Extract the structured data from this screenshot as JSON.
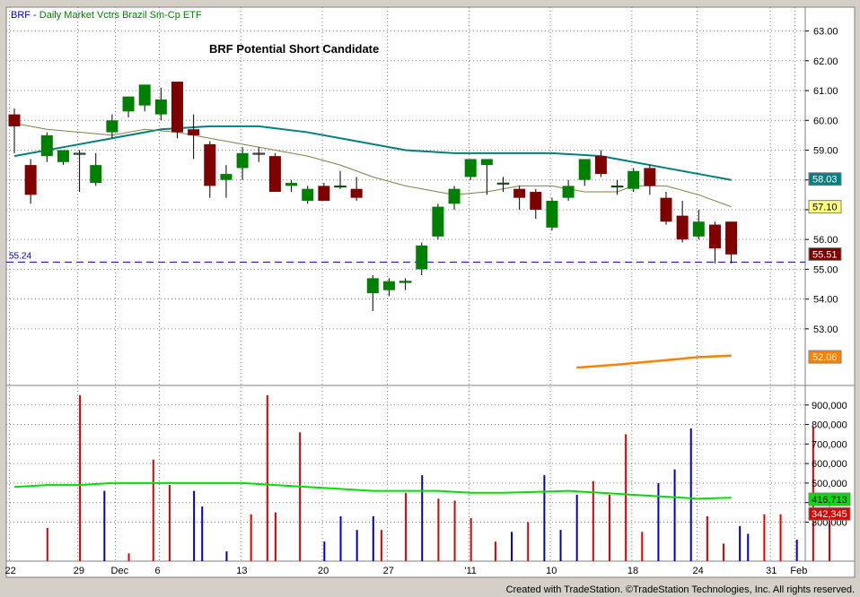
{
  "header": {
    "symbol": "BRF",
    "interval": "Daily",
    "description": "Market Vctrs Brazil Sm-Cp ETF",
    "annotation": "BRF Potential Short Candidate"
  },
  "footer": {
    "text": "Created with TradeStation. ©TradeStation Technologies, Inc. All rights reserved."
  },
  "colors": {
    "up": "#008000",
    "down": "#800000",
    "vol_up": "#0000c0",
    "vol_down": "#e00000",
    "ma_fast": "#808040",
    "ma_slow": "#008080",
    "vol_ma": "#00e000",
    "orange_line": "#ff8000",
    "support": "#0000c0",
    "grid": "#808080"
  },
  "chart_data": {
    "type": "candlestick",
    "price_axis": {
      "ticks": [
        "63.00",
        "62.00",
        "61.00",
        "60.00",
        "59.00",
        "58.00",
        "57.00",
        "56.00",
        "55.00",
        "54.00",
        "53.00"
      ],
      "range": [
        51.1,
        63.8
      ]
    },
    "volume_axis": {
      "ticks": [
        "900,000",
        "800,000",
        "700,000",
        "600,000",
        "500,000",
        "400,000",
        "300,000"
      ],
      "range": [
        100000,
        1000000
      ]
    },
    "x_labels": [
      {
        "label": "22",
        "bar": -0.3
      },
      {
        "label": "29",
        "bar": 3.9
      },
      {
        "label": "Dec",
        "bar": 6.2
      },
      {
        "label": "6",
        "bar": 8.9
      },
      {
        "label": "13",
        "bar": 13.9
      },
      {
        "label": "20",
        "bar": 18.9
      },
      {
        "label": "27",
        "bar": 22.9
      },
      {
        "label": "'11",
        "bar": 27.9
      },
      {
        "label": "10",
        "bar": 32.9
      },
      {
        "label": "18",
        "bar": 37.9
      },
      {
        "label": "24",
        "bar": 41.9
      },
      {
        "label": "31",
        "bar": 46.4
      },
      {
        "label": "Feb",
        "bar": 47.9
      }
    ],
    "candles": [
      {
        "o": 60.2,
        "h": 60.4,
        "l": 58.9,
        "c": 59.8
      },
      {
        "o": 58.5,
        "h": 58.7,
        "l": 57.2,
        "c": 57.5
      },
      {
        "o": 58.8,
        "h": 59.6,
        "l": 58.6,
        "c": 59.5
      },
      {
        "o": 58.6,
        "h": 59.0,
        "l": 58.5,
        "c": 59.0
      },
      {
        "o": 58.9,
        "h": 59.0,
        "l": 57.6,
        "c": 58.9
      },
      {
        "o": 57.9,
        "h": 58.9,
        "l": 57.8,
        "c": 58.5
      },
      {
        "o": 59.6,
        "h": 60.2,
        "l": 59.4,
        "c": 60.0
      },
      {
        "o": 60.3,
        "h": 60.8,
        "l": 60.1,
        "c": 60.8
      },
      {
        "o": 60.5,
        "h": 61.2,
        "l": 60.3,
        "c": 61.2
      },
      {
        "o": 60.2,
        "h": 61.1,
        "l": 60.0,
        "c": 60.7
      },
      {
        "o": 61.3,
        "h": 61.3,
        "l": 59.4,
        "c": 59.6
      },
      {
        "o": 59.7,
        "h": 60.2,
        "l": 58.7,
        "c": 59.5
      },
      {
        "o": 59.2,
        "h": 59.3,
        "l": 57.4,
        "c": 57.8
      },
      {
        "o": 58.0,
        "h": 58.5,
        "l": 57.4,
        "c": 58.2
      },
      {
        "o": 58.4,
        "h": 59.1,
        "l": 58.0,
        "c": 58.9
      },
      {
        "o": 58.9,
        "h": 59.1,
        "l": 58.6,
        "c": 58.9
      },
      {
        "o": 58.8,
        "h": 58.9,
        "l": 57.6,
        "c": 57.6
      },
      {
        "o": 57.8,
        "h": 58.0,
        "l": 57.6,
        "c": 57.9
      },
      {
        "o": 57.3,
        "h": 57.8,
        "l": 57.2,
        "c": 57.7
      },
      {
        "o": 57.8,
        "h": 57.9,
        "l": 57.3,
        "c": 57.3
      },
      {
        "o": 57.8,
        "h": 58.3,
        "l": 57.7,
        "c": 57.8
      },
      {
        "o": 57.7,
        "h": 58.1,
        "l": 57.3,
        "c": 57.4
      },
      {
        "o": 54.2,
        "h": 54.8,
        "l": 53.6,
        "c": 54.7
      },
      {
        "o": 54.3,
        "h": 54.7,
        "l": 54.1,
        "c": 54.6
      },
      {
        "o": 54.6,
        "h": 54.7,
        "l": 54.3,
        "c": 54.6
      },
      {
        "o": 55.0,
        "h": 55.9,
        "l": 54.8,
        "c": 55.8
      },
      {
        "o": 56.1,
        "h": 57.2,
        "l": 56.0,
        "c": 57.1
      },
      {
        "o": 57.2,
        "h": 57.8,
        "l": 57.0,
        "c": 57.7
      },
      {
        "o": 58.1,
        "h": 58.7,
        "l": 58.0,
        "c": 58.7
      },
      {
        "o": 58.5,
        "h": 58.7,
        "l": 57.5,
        "c": 58.7
      },
      {
        "o": 57.9,
        "h": 58.1,
        "l": 57.6,
        "c": 57.9
      },
      {
        "o": 57.7,
        "h": 57.8,
        "l": 57.0,
        "c": 57.4
      },
      {
        "o": 57.6,
        "h": 57.7,
        "l": 56.7,
        "c": 57.0
      },
      {
        "o": 56.4,
        "h": 57.4,
        "l": 56.3,
        "c": 57.3
      },
      {
        "o": 57.4,
        "h": 58.0,
        "l": 57.3,
        "c": 57.8
      },
      {
        "o": 58.0,
        "h": 58.7,
        "l": 57.8,
        "c": 58.7
      },
      {
        "o": 58.8,
        "h": 59.0,
        "l": 58.1,
        "c": 58.2
      },
      {
        "o": 57.8,
        "h": 58.0,
        "l": 57.5,
        "c": 57.8
      },
      {
        "o": 57.7,
        "h": 58.4,
        "l": 57.6,
        "c": 58.3
      },
      {
        "o": 58.4,
        "h": 58.5,
        "l": 57.5,
        "c": 57.8
      },
      {
        "o": 57.4,
        "h": 57.6,
        "l": 56.5,
        "c": 56.6
      },
      {
        "o": 56.8,
        "h": 57.3,
        "l": 55.9,
        "c": 56.0
      },
      {
        "o": 56.1,
        "h": 57.0,
        "l": 56.0,
        "c": 56.6
      },
      {
        "o": 56.5,
        "h": 56.6,
        "l": 55.2,
        "c": 55.7
      },
      {
        "o": 56.6,
        "h": 56.6,
        "l": 55.2,
        "c": 55.5
      }
    ],
    "volume": [
      [
        4,
        270000,
        "d"
      ],
      [
        8,
        950000,
        "d"
      ],
      [
        11,
        460000,
        "u"
      ],
      [
        14,
        140000,
        "d"
      ],
      [
        17,
        620000,
        "d"
      ],
      [
        19,
        490000,
        "d"
      ],
      [
        22,
        460000,
        "u"
      ],
      [
        23,
        380000,
        "u"
      ],
      [
        26,
        150000,
        "u"
      ],
      [
        29,
        340000,
        "d"
      ],
      [
        31,
        950000,
        "d"
      ],
      [
        32,
        350000,
        "d"
      ],
      [
        35,
        760000,
        "d"
      ],
      [
        38,
        200000,
        "u"
      ],
      [
        40,
        330000,
        "u"
      ],
      [
        42,
        260000,
        "u"
      ],
      [
        44,
        330000,
        "u"
      ],
      [
        45,
        260000,
        "d"
      ],
      [
        48,
        450000,
        "d"
      ],
      [
        50,
        540000,
        "u"
      ],
      [
        52,
        420000,
        "d"
      ],
      [
        54,
        410000,
        "d"
      ],
      [
        56,
        320000,
        "d"
      ],
      [
        59,
        200000,
        "d"
      ],
      [
        61,
        250000,
        "u"
      ],
      [
        63,
        300000,
        "d"
      ],
      [
        65,
        540000,
        "u"
      ],
      [
        67,
        260000,
        "u"
      ],
      [
        69,
        440000,
        "u"
      ],
      [
        71,
        510000,
        "d"
      ],
      [
        73,
        440000,
        "d"
      ],
      [
        75,
        750000,
        "d"
      ],
      [
        77,
        250000,
        "d"
      ],
      [
        79,
        500000,
        "u"
      ],
      [
        81,
        570000,
        "u"
      ],
      [
        83,
        780000,
        "u"
      ],
      [
        85,
        330000,
        "d"
      ],
      [
        87,
        190000,
        "d"
      ],
      [
        89,
        280000,
        "u"
      ],
      [
        90,
        240000,
        "u"
      ],
      [
        92,
        340000,
        "d"
      ],
      [
        94,
        340000,
        "d"
      ],
      [
        96,
        210000,
        "u"
      ],
      [
        98,
        790000,
        "d"
      ],
      [
        100,
        340000,
        "d"
      ]
    ],
    "ma_fast": [
      [
        0,
        59.9
      ],
      [
        2,
        59.7
      ],
      [
        4,
        59.6
      ],
      [
        6,
        59.5
      ],
      [
        8,
        59.7
      ],
      [
        10,
        59.6
      ],
      [
        12,
        59.4
      ],
      [
        14,
        59.2
      ],
      [
        16,
        59.0
      ],
      [
        18,
        58.8
      ],
      [
        20,
        58.5
      ],
      [
        22,
        58.1
      ],
      [
        24,
        57.8
      ],
      [
        26,
        57.6
      ],
      [
        27,
        57.5
      ],
      [
        29,
        57.6
      ],
      [
        31,
        57.8
      ],
      [
        33,
        57.8
      ],
      [
        35,
        57.6
      ],
      [
        37,
        57.6
      ],
      [
        38,
        57.8
      ],
      [
        40,
        57.8
      ],
      [
        42,
        57.5
      ],
      [
        44,
        57.1
      ]
    ],
    "ma_slow": [
      [
        0,
        58.8
      ],
      [
        3,
        59.1
      ],
      [
        6,
        59.4
      ],
      [
        9,
        59.7
      ],
      [
        12,
        59.8
      ],
      [
        15,
        59.8
      ],
      [
        18,
        59.6
      ],
      [
        21,
        59.3
      ],
      [
        24,
        59.0
      ],
      [
        27,
        58.9
      ],
      [
        30,
        58.9
      ],
      [
        33,
        58.9
      ],
      [
        36,
        58.8
      ],
      [
        38,
        58.6
      ],
      [
        40,
        58.4
      ],
      [
        42,
        58.2
      ],
      [
        44,
        58.0
      ]
    ],
    "orange_line": [
      [
        34.5,
        51.7
      ],
      [
        37,
        51.8
      ],
      [
        40,
        51.95
      ],
      [
        42,
        52.05
      ],
      [
        44,
        52.1
      ]
    ],
    "vol_ma": [
      [
        0,
        480000
      ],
      [
        2,
        490000
      ],
      [
        4,
        490000
      ],
      [
        6,
        500000
      ],
      [
        8,
        500000
      ],
      [
        10,
        500000
      ],
      [
        12,
        500000
      ],
      [
        14,
        500000
      ],
      [
        16,
        490000
      ],
      [
        18,
        480000
      ],
      [
        20,
        470000
      ],
      [
        22,
        460000
      ],
      [
        24,
        460000
      ],
      [
        26,
        460000
      ],
      [
        28,
        450000
      ],
      [
        30,
        450000
      ],
      [
        32,
        455000
      ],
      [
        34,
        460000
      ],
      [
        36,
        450000
      ],
      [
        38,
        440000
      ],
      [
        40,
        430000
      ],
      [
        42,
        420000
      ],
      [
        44,
        425000
      ]
    ],
    "support": {
      "value": 55.24,
      "label": "55.24"
    },
    "last_values": [
      {
        "label": "58.03",
        "price": 58.03,
        "bg": "#008080",
        "fg": "#ffffff"
      },
      {
        "label": "57.10",
        "price": 57.1,
        "bg": "#ffff80",
        "fg": "#000000"
      },
      {
        "label": "55.51",
        "price": 55.51,
        "bg": "#800000",
        "fg": "#ffffff"
      },
      {
        "label": "52.06",
        "price": 52.06,
        "bg": "#ff8000",
        "fg": "#ffffff"
      }
    ],
    "vol_last": [
      {
        "label": "416,713",
        "vol": 416713,
        "bg": "#00e000",
        "fg": "#000000"
      },
      {
        "label": "342,345",
        "vol": 342345,
        "bg": "#e00000",
        "fg": "#ffffff"
      }
    ]
  }
}
